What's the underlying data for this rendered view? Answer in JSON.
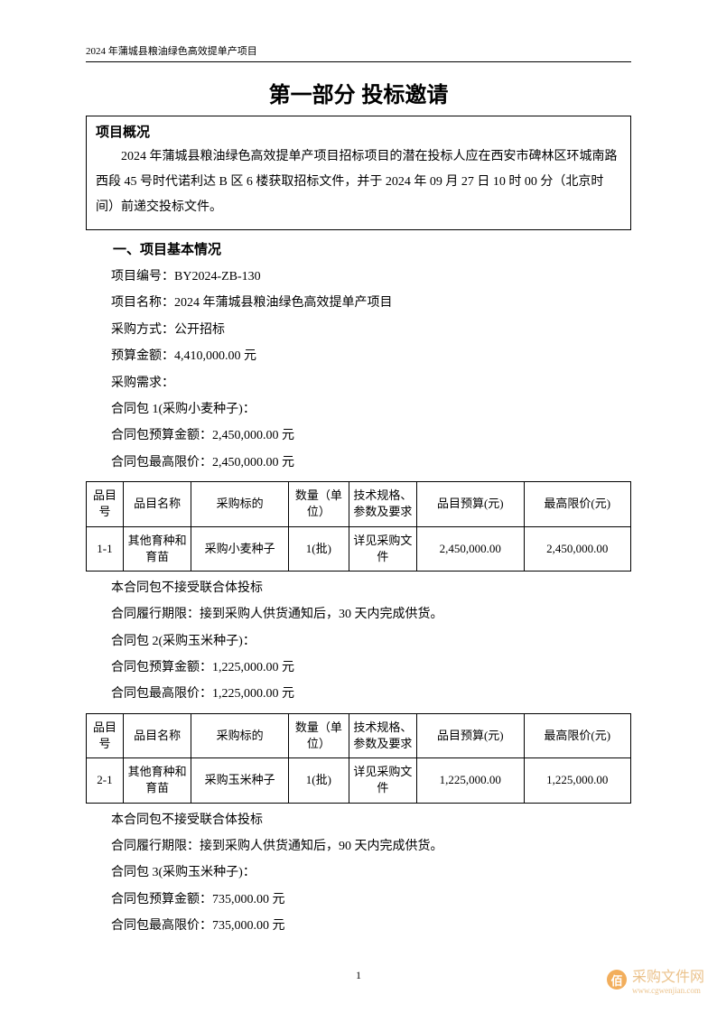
{
  "header": "2024 年蒲城县粮油绿色高效提单产项目",
  "main_title": "第一部分 投标邀请",
  "overview": {
    "title": "项目概况",
    "text": "2024 年蒲城县粮油绿色高效提单产项目招标项目的潜在投标人应在西安市碑林区环城南路西段 45 号时代诺利达 B 区 6 楼获取招标文件，并于 2024 年 09 月 27 日 10 时 00 分（北京时间）前递交投标文件。"
  },
  "section1_title": "一、项目基本情况",
  "fields": {
    "project_no_label": "项目编号：",
    "project_no": "BY2024-ZB-130",
    "project_name_label": "项目名称：",
    "project_name": "2024 年蒲城县粮油绿色高效提单产项目",
    "method_label": "采购方式：",
    "method": "公开招标",
    "budget_label": "预算金额：",
    "budget": "4,410,000.00 元",
    "requirement_label": "采购需求："
  },
  "package1": {
    "title": "合同包 1(采购小麦种子)：",
    "budget": "合同包预算金额：2,450,000.00 元",
    "limit": "合同包最高限价：2,450,000.00 元",
    "after1": "本合同包不接受联合体投标",
    "after2": "合同履行期限：接到采购人供货通知后，30 天内完成供货。"
  },
  "package2": {
    "title": "合同包 2(采购玉米种子)：",
    "budget": "合同包预算金额：1,225,000.00 元",
    "limit": "合同包最高限价：1,225,000.00 元",
    "after1": "本合同包不接受联合体投标",
    "after2": "合同履行期限：接到采购人供货通知后，90 天内完成供货。"
  },
  "package3": {
    "title": "合同包 3(采购玉米种子)：",
    "budget": "合同包预算金额：735,000.00 元",
    "limit": "合同包最高限价：735,000.00 元"
  },
  "table_headers": {
    "c0": "品目号",
    "c1": "品目名称",
    "c2": "采购标的",
    "c3": "数量（单位）",
    "c4": "技术规格、参数及要求",
    "c5": "品目预算(元)",
    "c6": "最高限价(元)"
  },
  "table1": {
    "type": "table",
    "row": {
      "c0": "1-1",
      "c1": "其他育种和育苗",
      "c2": "采购小麦种子",
      "c3": "1(批)",
      "c4": "详见采购文件",
      "c5": "2,450,000.00",
      "c6": "2,450,000.00"
    },
    "colors": {
      "border": "#000000",
      "background": "#ffffff",
      "text": "#000000"
    },
    "fontsize": 13
  },
  "table2": {
    "type": "table",
    "row": {
      "c0": "2-1",
      "c1": "其他育种和育苗",
      "c2": "采购玉米种子",
      "c3": "1(批)",
      "c4": "详见采购文件",
      "c5": "1,225,000.00",
      "c6": "1,225,000.00"
    },
    "colors": {
      "border": "#000000",
      "background": "#ffffff",
      "text": "#000000"
    },
    "fontsize": 13
  },
  "page_number": "1",
  "watermark": {
    "text": "采购文件网",
    "sub": "www.cgwenjian.com",
    "icon": "佰",
    "color": "#e8b878",
    "icon_bg": "#f0a040"
  }
}
